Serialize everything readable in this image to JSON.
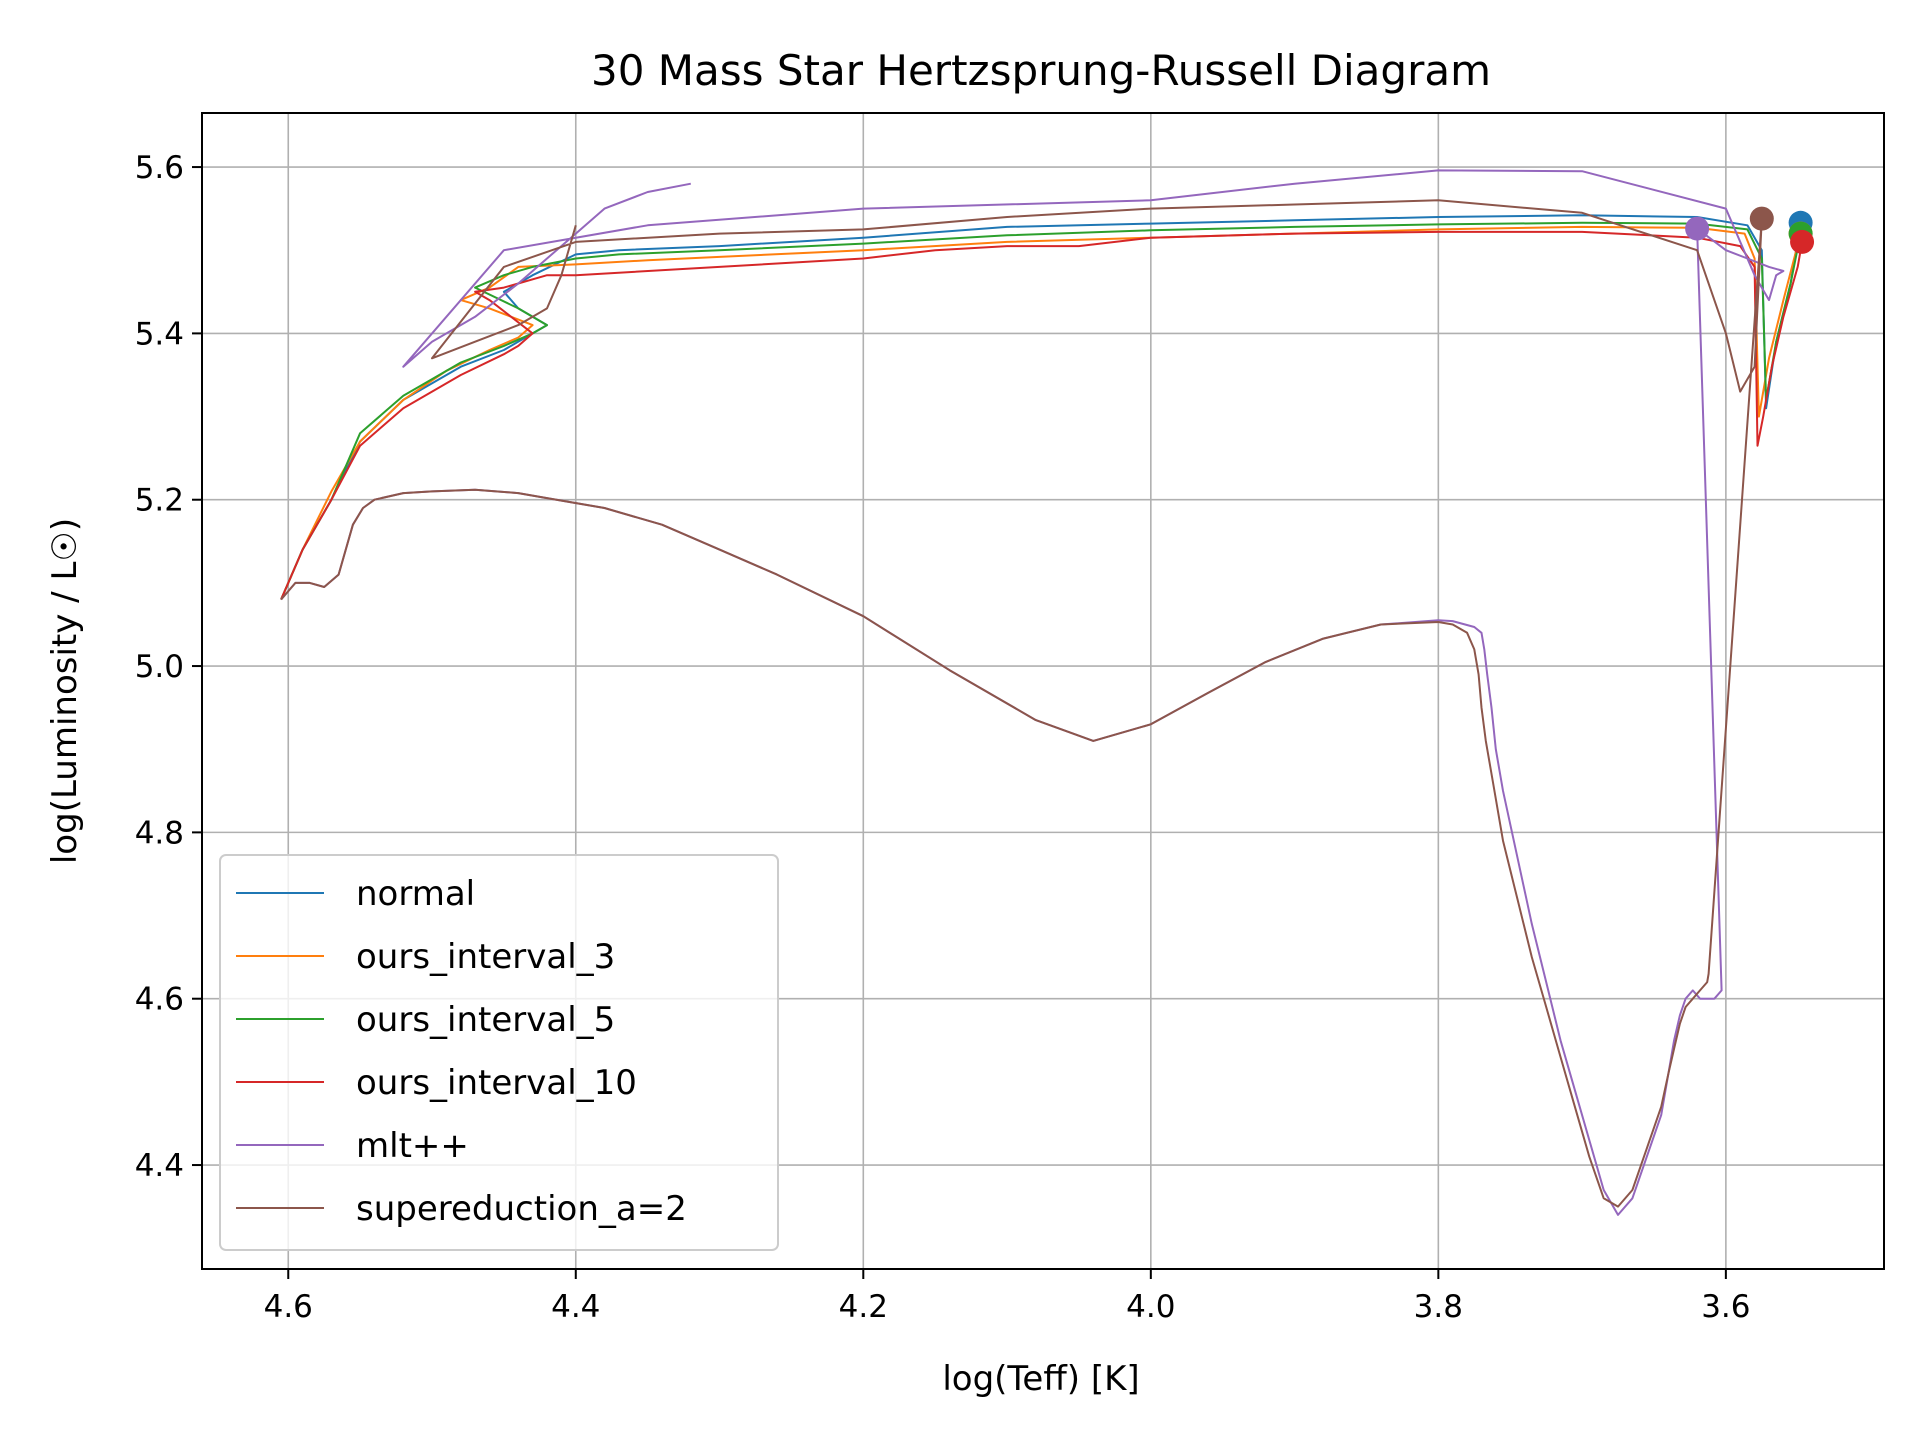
{
  "chart_data": {
    "type": "line",
    "title": "30 Mass Star Hertzsprung-Russell Diagram",
    "xlabel": "log(Teff) [K]",
    "ylabel": "log(Luminosity / L☉)",
    "xlim": [
      4.66,
      3.49
    ],
    "ylim": [
      4.275,
      5.665
    ],
    "x_inverted": true,
    "grid": true,
    "legend_position": "lower-left",
    "xticks": [
      "4.6",
      "4.4",
      "4.2",
      "4.0",
      "3.8",
      "3.6"
    ],
    "yticks": [
      "4.4",
      "4.6",
      "4.8",
      "5.0",
      "5.2",
      "5.4",
      "5.6"
    ],
    "series": [
      {
        "name": "normal",
        "color": "#1f77b4",
        "x": [
          4.605,
          4.59,
          4.57,
          4.55,
          4.52,
          4.48,
          4.45,
          4.43,
          4.42,
          4.44,
          4.45,
          4.43,
          4.4,
          4.37,
          4.3,
          4.2,
          4.1,
          4.0,
          3.9,
          3.8,
          3.7,
          3.62,
          3.585,
          3.575,
          3.572,
          3.565,
          3.555,
          3.548
        ],
        "y": [
          5.08,
          5.14,
          5.2,
          5.27,
          5.32,
          5.36,
          5.38,
          5.4,
          5.41,
          5.43,
          5.45,
          5.47,
          5.495,
          5.5,
          5.505,
          5.515,
          5.528,
          5.532,
          5.536,
          5.54,
          5.542,
          5.54,
          5.53,
          5.5,
          5.31,
          5.39,
          5.46,
          5.533
        ],
        "endpoint": [
          3.548,
          5.533
        ]
      },
      {
        "name": "ours_interval_3",
        "color": "#ff7f0e",
        "x": [
          4.605,
          4.59,
          4.57,
          4.55,
          4.52,
          4.49,
          4.46,
          4.44,
          4.43,
          4.46,
          4.48,
          4.46,
          4.44,
          4.4,
          4.35,
          4.3,
          4.2,
          4.1,
          4.0,
          3.9,
          3.8,
          3.7,
          3.62,
          3.587,
          3.58,
          3.577,
          3.57,
          3.56,
          3.548
        ],
        "y": [
          5.08,
          5.14,
          5.21,
          5.27,
          5.32,
          5.355,
          5.38,
          5.395,
          5.41,
          5.43,
          5.44,
          5.455,
          5.48,
          5.483,
          5.488,
          5.492,
          5.5,
          5.51,
          5.515,
          5.52,
          5.525,
          5.528,
          5.527,
          5.52,
          5.49,
          5.3,
          5.37,
          5.44,
          5.52
        ],
        "endpoint": [
          3.548,
          5.52
        ]
      },
      {
        "name": "ours_interval_5",
        "color": "#2ca02c",
        "x": [
          4.605,
          4.59,
          4.57,
          4.55,
          4.52,
          4.48,
          4.45,
          4.43,
          4.42,
          4.44,
          4.47,
          4.45,
          4.43,
          4.4,
          4.37,
          4.3,
          4.2,
          4.1,
          4.0,
          3.9,
          3.8,
          3.7,
          3.62,
          3.585,
          3.575,
          3.572,
          3.565,
          3.555,
          3.548
        ],
        "y": [
          5.08,
          5.14,
          5.2,
          5.28,
          5.325,
          5.365,
          5.385,
          5.4,
          5.41,
          5.43,
          5.455,
          5.47,
          5.48,
          5.49,
          5.495,
          5.5,
          5.508,
          5.518,
          5.524,
          5.528,
          5.531,
          5.533,
          5.532,
          5.525,
          5.49,
          5.32,
          5.39,
          5.46,
          5.52
        ],
        "endpoint": [
          3.548,
          5.52
        ]
      },
      {
        "name": "ours_interval_10",
        "color": "#d62728",
        "x": [
          4.605,
          4.59,
          4.57,
          4.55,
          4.52,
          4.48,
          4.45,
          4.44,
          4.43,
          4.46,
          4.47,
          4.45,
          4.42,
          4.4,
          4.3,
          4.2,
          4.15,
          4.1,
          4.05,
          4.0,
          3.9,
          3.8,
          3.7,
          3.62,
          3.59,
          3.58,
          3.578,
          3.574,
          3.568,
          3.56,
          3.55,
          3.547
        ],
        "y": [
          5.08,
          5.14,
          5.2,
          5.265,
          5.31,
          5.35,
          5.375,
          5.385,
          5.4,
          5.44,
          5.45,
          5.455,
          5.47,
          5.47,
          5.48,
          5.49,
          5.5,
          5.505,
          5.505,
          5.515,
          5.52,
          5.522,
          5.522,
          5.515,
          5.505,
          5.48,
          5.265,
          5.3,
          5.36,
          5.42,
          5.48,
          5.51
        ],
        "endpoint": [
          3.547,
          5.51
        ]
      },
      {
        "name": "mlt++",
        "color": "#9467bd",
        "x": [
          4.605,
          4.595,
          4.585,
          4.575,
          4.565,
          4.555,
          4.548,
          4.54,
          4.52,
          4.5,
          4.47,
          4.44,
          4.42,
          4.38,
          4.34,
          4.3,
          4.26,
          4.2,
          4.14,
          4.08,
          4.04,
          4.0,
          3.96,
          3.92,
          3.88,
          3.84,
          3.8,
          3.79,
          3.775,
          3.77,
          3.768,
          3.766,
          3.763,
          3.76,
          3.755,
          3.745,
          3.735,
          3.725,
          3.715,
          3.705,
          3.695,
          3.685,
          3.675,
          3.665,
          3.655,
          3.645,
          3.64,
          3.636,
          3.632,
          3.628,
          3.623,
          3.618,
          3.613,
          3.608,
          3.603,
          3.62,
          3.6,
          3.585,
          3.57,
          3.56,
          3.565,
          3.57,
          3.58,
          3.6,
          3.7,
          3.8,
          3.9,
          4.0,
          4.2,
          4.35,
          4.45,
          4.52,
          4.5,
          4.47,
          4.44,
          4.42,
          4.4,
          4.38,
          4.35,
          4.32
        ],
        "y": [
          5.08,
          5.1,
          5.1,
          5.095,
          5.11,
          5.17,
          5.19,
          5.2,
          5.208,
          5.21,
          5.212,
          5.208,
          5.202,
          5.19,
          5.17,
          5.14,
          5.11,
          5.06,
          4.995,
          4.935,
          4.91,
          4.93,
          4.968,
          5.005,
          5.033,
          5.05,
          5.055,
          5.054,
          5.047,
          5.04,
          5.02,
          4.99,
          4.95,
          4.9,
          4.85,
          4.77,
          4.69,
          4.62,
          4.55,
          4.49,
          4.43,
          4.37,
          4.34,
          4.36,
          4.41,
          4.46,
          4.51,
          4.55,
          4.58,
          4.6,
          4.61,
          4.6,
          4.6,
          4.6,
          4.61,
          5.526,
          5.5,
          5.49,
          5.48,
          5.475,
          5.47,
          5.44,
          5.47,
          5.55,
          5.595,
          5.596,
          5.58,
          5.56,
          5.55,
          5.53,
          5.5,
          5.36,
          5.39,
          5.42,
          5.46,
          5.49,
          5.52,
          5.55,
          5.57,
          5.58
        ],
        "endpoint": [
          3.62,
          5.526
        ]
      },
      {
        "name": "supereduction_a=2",
        "color": "#8c564b",
        "x": [
          4.605,
          4.595,
          4.585,
          4.575,
          4.565,
          4.555,
          4.548,
          4.54,
          4.52,
          4.5,
          4.47,
          4.44,
          4.42,
          4.38,
          4.34,
          4.3,
          4.26,
          4.2,
          4.14,
          4.08,
          4.04,
          4.0,
          3.96,
          3.92,
          3.88,
          3.84,
          3.8,
          3.79,
          3.78,
          3.775,
          3.772,
          3.77,
          3.767,
          3.762,
          3.755,
          3.745,
          3.735,
          3.725,
          3.715,
          3.705,
          3.695,
          3.685,
          3.675,
          3.665,
          3.655,
          3.645,
          3.64,
          3.636,
          3.632,
          3.628,
          3.623,
          3.618,
          3.613,
          3.612,
          3.575,
          3.58,
          3.59,
          3.6,
          3.62,
          3.7,
          3.8,
          3.9,
          4.0,
          4.1,
          4.2,
          4.3,
          4.4,
          4.45,
          4.5,
          4.47,
          4.44,
          4.42,
          4.41,
          4.4
        ],
        "y": [
          5.08,
          5.1,
          5.1,
          5.095,
          5.11,
          5.17,
          5.19,
          5.2,
          5.208,
          5.21,
          5.212,
          5.208,
          5.202,
          5.19,
          5.17,
          5.14,
          5.11,
          5.06,
          4.995,
          4.935,
          4.91,
          4.93,
          4.968,
          5.005,
          5.033,
          5.05,
          5.053,
          5.05,
          5.04,
          5.02,
          4.99,
          4.95,
          4.91,
          4.86,
          4.79,
          4.72,
          4.65,
          4.59,
          4.53,
          4.47,
          4.41,
          4.36,
          4.35,
          4.37,
          4.42,
          4.47,
          4.51,
          4.54,
          4.57,
          4.59,
          4.6,
          4.61,
          4.62,
          4.63,
          5.538,
          5.36,
          5.33,
          5.4,
          5.5,
          5.545,
          5.56,
          5.555,
          5.55,
          5.54,
          5.525,
          5.52,
          5.51,
          5.48,
          5.37,
          5.39,
          5.41,
          5.43,
          5.47,
          5.53
        ],
        "endpoint": [
          3.575,
          5.538
        ]
      }
    ]
  }
}
